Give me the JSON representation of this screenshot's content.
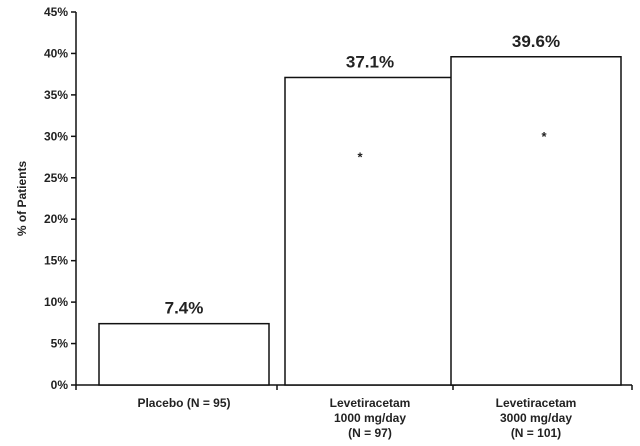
{
  "chart_data": {
    "type": "bar",
    "title": "",
    "xlabel": "",
    "ylabel": "% of Patients",
    "ylim": [
      0,
      45
    ],
    "yticks": [
      "0%",
      "5%",
      "10%",
      "15%",
      "20%",
      "25%",
      "30%",
      "35%",
      "40%",
      "45%"
    ],
    "categories": [
      [
        "Placebo (N = 95)"
      ],
      [
        "Levetiracetam",
        "1000 mg/day",
        "(N = 97)"
      ],
      [
        "Levetiracetam",
        "3000 mg/day",
        "(N = 101)"
      ]
    ],
    "values": [
      7.4,
      37.1,
      39.6
    ],
    "data_labels": [
      "7.4%",
      "37.1%",
      "39.6%"
    ],
    "annotations": [
      "",
      "*",
      "*"
    ],
    "grid": false,
    "colors": {
      "bar_fill": "#ffffff",
      "bar_stroke": "#111111",
      "axis": "#111111"
    }
  }
}
